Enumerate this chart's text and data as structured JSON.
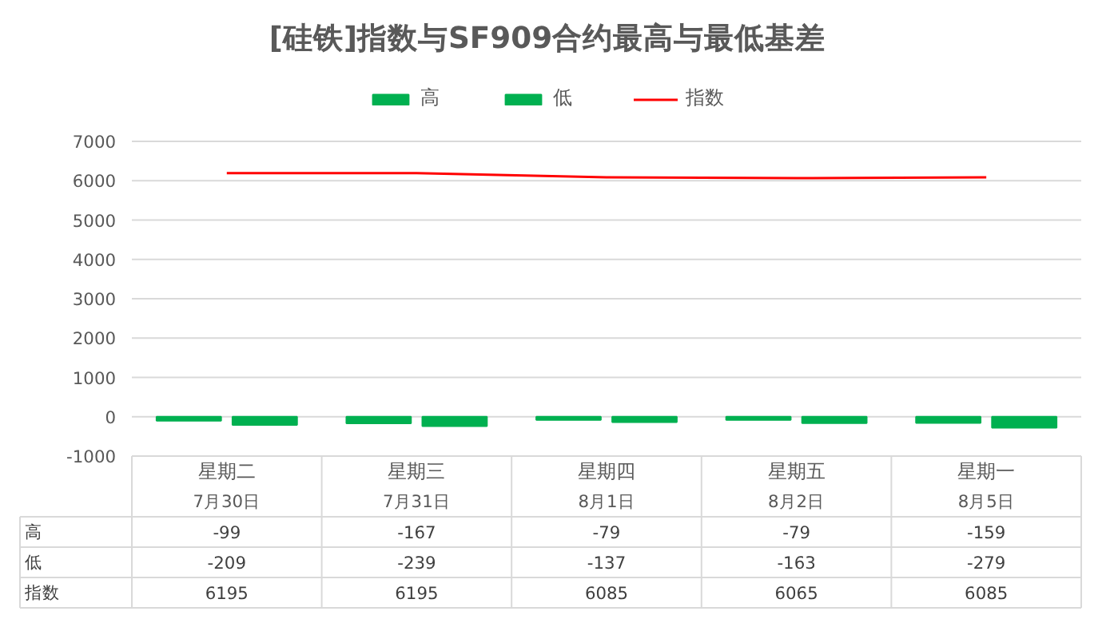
{
  "chart_data": {
    "type": "bar",
    "title": "[硅铁]指数与SF909合约最高与最低基差",
    "categories": [
      "星期二\n7月30日",
      "星期三\n7月31日",
      "星期四\n8月1日",
      "星期五\n8月2日",
      "星期一\n8月5日"
    ],
    "series": [
      {
        "name": "高",
        "color": "#00b050",
        "values": [
          -99,
          -167,
          -79,
          -79,
          -159
        ]
      },
      {
        "name": "低",
        "color": "#00b050",
        "values": [
          -209,
          -239,
          -137,
          -163,
          -279
        ]
      },
      {
        "name": "指数",
        "type": "line",
        "color": "#ff0000",
        "values": [
          6195,
          6195,
          6085,
          6065,
          6085
        ]
      }
    ],
    "ylim": [
      -1000,
      7000
    ],
    "yticks": [
      -1000,
      0,
      1000,
      2000,
      3000,
      4000,
      5000,
      6000,
      7000
    ],
    "grid": "y",
    "legend": "top",
    "data_labels": true
  }
}
